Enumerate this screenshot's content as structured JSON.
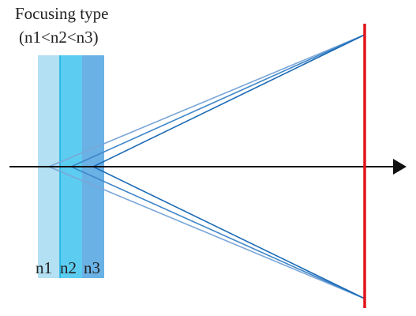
{
  "title": "Focusing type",
  "condition": "(n1<n2<n3)",
  "layers": [
    {
      "label": "n1"
    },
    {
      "label": "n2"
    },
    {
      "label": "n3"
    }
  ]
}
